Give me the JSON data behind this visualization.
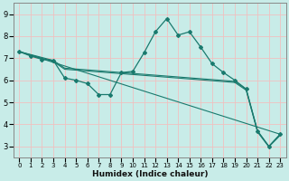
{
  "xlabel": "Humidex (Indice chaleur)",
  "background_color": "#c8ece8",
  "line_color": "#1a7a6e",
  "grid_color": "#f0c0c0",
  "xlim": [
    -0.5,
    23.5
  ],
  "ylim": [
    2.5,
    9.5
  ],
  "xticks": [
    0,
    1,
    2,
    3,
    4,
    5,
    6,
    7,
    8,
    9,
    10,
    11,
    12,
    13,
    14,
    15,
    16,
    17,
    18,
    19,
    20,
    21,
    22,
    23
  ],
  "yticks": [
    3,
    4,
    5,
    6,
    7,
    8,
    9
  ],
  "series_main": {
    "x": [
      0,
      1,
      2,
      3,
      4,
      5,
      6,
      7,
      8,
      9,
      10,
      11,
      12,
      13,
      14,
      15,
      16,
      17,
      18,
      19,
      20,
      21,
      22,
      23
    ],
    "y": [
      7.3,
      7.1,
      6.95,
      6.9,
      6.1,
      6.0,
      5.85,
      5.35,
      5.35,
      6.35,
      6.4,
      7.25,
      8.2,
      8.8,
      8.05,
      8.2,
      7.5,
      6.75,
      6.35,
      6.0,
      5.6,
      3.7,
      3.0,
      3.55
    ]
  },
  "series_diag1": {
    "x": [
      0,
      23
    ],
    "y": [
      7.3,
      3.55
    ]
  },
  "series_diag2": {
    "x": [
      0,
      3,
      4,
      9,
      19,
      20,
      21,
      22,
      23
    ],
    "y": [
      7.3,
      6.9,
      6.55,
      6.35,
      5.95,
      5.6,
      3.7,
      3.0,
      3.55
    ]
  },
  "series_diag3": {
    "x": [
      0,
      3,
      4,
      9,
      19,
      20,
      21,
      22,
      23
    ],
    "y": [
      7.3,
      6.85,
      6.5,
      6.3,
      5.9,
      5.55,
      3.65,
      2.98,
      3.5
    ]
  }
}
